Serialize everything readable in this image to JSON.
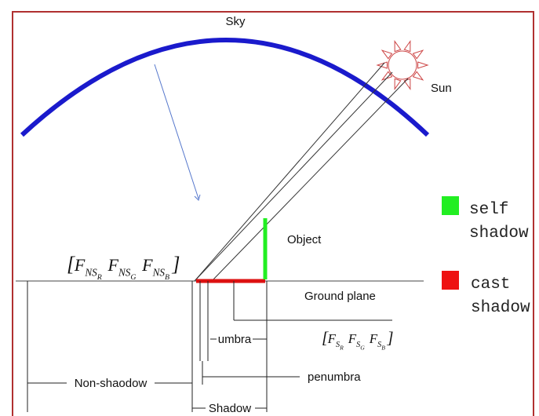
{
  "diagram": {
    "sky": "Sky",
    "sun": "Sun",
    "object": "Object",
    "ground": "Ground plane",
    "umbra": "umbra",
    "penumbra": "penumbra",
    "non_shadow": "Non-shaodow",
    "shadow": "Shadow",
    "legend": [
      {
        "lines": [
          "self",
          "shadow"
        ],
        "color": "#22ee22"
      },
      {
        "lines": [
          "cast",
          "shadow"
        ],
        "color": "#ee1111"
      }
    ],
    "non_shadow_value": {
      "base": "F",
      "sub": "NS",
      "channels": [
        "R",
        "G",
        "B"
      ]
    },
    "shadow_value": {
      "base": "F",
      "sub": "S",
      "channels": [
        "R",
        "G",
        "B"
      ]
    }
  }
}
